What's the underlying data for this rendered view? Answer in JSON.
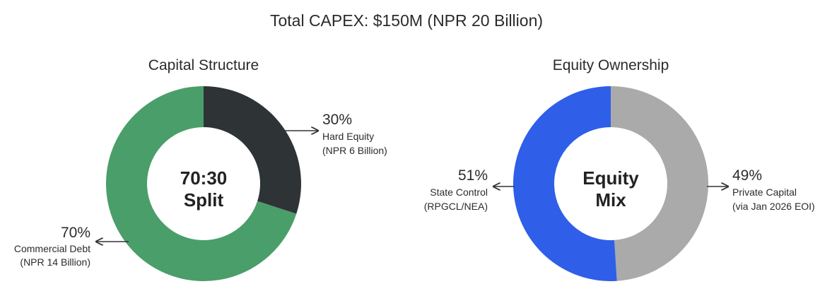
{
  "main_title": "Total CAPEX: $150M (NPR 20 Billion)",
  "chart_data": [
    {
      "type": "pie",
      "title": "Capital Structure",
      "center_label": [
        "70:30",
        "Split"
      ],
      "slices": [
        {
          "pct_label": "30%",
          "value": 30,
          "label": "Hard Equity",
          "sublabel": "(NPR 6 Billion)",
          "color": "#2e3336"
        },
        {
          "pct_label": "70%",
          "value": 70,
          "label": "Commercial Debt",
          "sublabel": "(NPR 14 Billion)",
          "color": "#4a9e6a"
        }
      ]
    },
    {
      "type": "pie",
      "title": "Equity Ownership",
      "center_label": [
        "Equity",
        "Mix"
      ],
      "slices": [
        {
          "pct_label": "49%",
          "value": 49,
          "label": "Private Capital",
          "sublabel": "(via Jan 2026 EOI)",
          "color": "#aaaaaa"
        },
        {
          "pct_label": "51%",
          "value": 51,
          "label": "State Control",
          "sublabel": "(RPGCL/NEA)",
          "color": "#2f5fe8"
        }
      ]
    }
  ]
}
